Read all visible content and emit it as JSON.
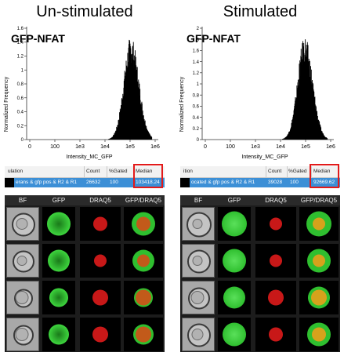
{
  "panels": [
    {
      "id": "unstim",
      "title": "Un-stimulated",
      "plot_label": "GFP-NFAT",
      "ylabel": "Normalized Frequency",
      "xlabel": "Intensity_MC_GFP",
      "x_ticks": [
        "0",
        "100",
        "1e3",
        "1e4",
        "1e5",
        "1e6"
      ],
      "y_ticks": [
        "0",
        "0.2",
        "0.4",
        "0.6",
        "0.8",
        "1",
        "1.2",
        "1.4",
        "1.6"
      ],
      "peak_log": 5.02,
      "stats_headers": [
        "ulation",
        "Count",
        "%Gated",
        "Median"
      ],
      "stats_values": [
        "erans & gfp pos & R2 & R1",
        "26632",
        "100",
        "103418.24"
      ],
      "image_headers": [
        "BF",
        "GFP",
        "DRAQ5",
        "GFP/DRAQ5"
      ]
    },
    {
      "id": "stim",
      "title": "Stimulated",
      "plot_label": "GFP-NFAT",
      "ylabel": "Normalized Frequency",
      "xlabel": "Intensity_MC_GFP",
      "x_ticks": [
        "0",
        "100",
        "1e3",
        "1e4",
        "1e5",
        "1e6"
      ],
      "y_ticks": [
        "0",
        "0.2",
        "0.4",
        "0.6",
        "0.8",
        "1",
        "1.2",
        "1.4",
        "1.6",
        "1.8",
        "2"
      ],
      "peak_log": 4.95,
      "stats_headers": [
        "ition",
        "Count",
        "%Gated",
        "Median"
      ],
      "stats_values": [
        "ocated & gfp pos & R2 & R1",
        "39028",
        "100",
        "92669.62"
      ],
      "image_headers": [
        "BF",
        "GFP",
        "DRAQ5",
        "GFP/DRAQ5"
      ]
    }
  ],
  "colors": {
    "highlight_box": "#e21a1a",
    "row_select": "#3c8fd6",
    "gfp": "#2fbf2f",
    "draq5": "#c81818",
    "merge_center": "#d6a21c"
  }
}
